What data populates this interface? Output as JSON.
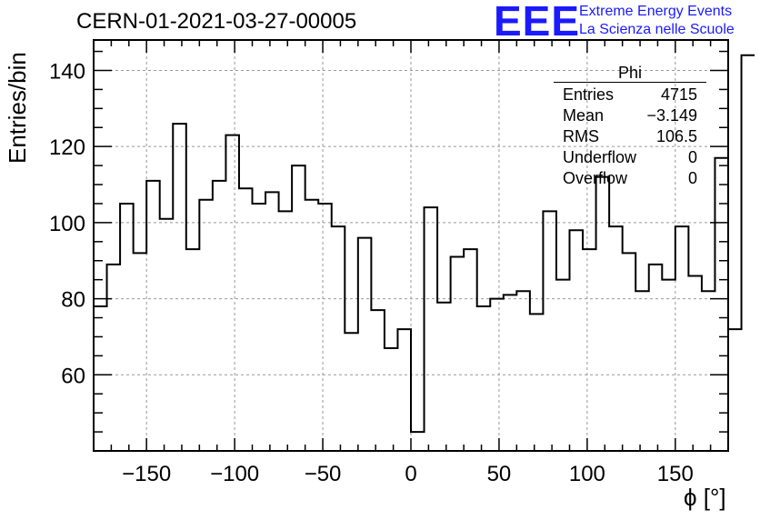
{
  "header": {
    "run_title": "CERN-01-2021-03-27-00005",
    "logo_text": "EEE",
    "logo_line1": "Extreme Energy Events",
    "logo_line2": "La Scienza nelle Scuole",
    "logo_color": "#1a1aff"
  },
  "stats_box": {
    "name": "Phi",
    "rows": [
      {
        "label": "Entries",
        "value": "4715"
      },
      {
        "label": "Mean",
        "value": "−3.149"
      },
      {
        "label": "RMS",
        "value": "106.5"
      },
      {
        "label": "Underflow",
        "value": "0"
      },
      {
        "label": "Overflow",
        "value": "0"
      }
    ]
  },
  "chart_data": {
    "type": "histogram",
    "xlabel": "ϕ [°]",
    "ylabel": "Entries/bin",
    "xlim": [
      -180,
      180
    ],
    "ylim": [
      40,
      148
    ],
    "bin_width": 7.5,
    "bin_start": -180,
    "values": [
      78,
      89,
      105,
      92,
      111,
      101,
      126,
      93,
      106,
      111,
      123,
      109,
      105,
      108,
      103,
      115,
      106,
      105,
      99,
      71,
      96,
      77,
      67,
      72,
      45,
      104,
      79,
      91,
      93,
      78,
      80,
      81,
      82,
      76,
      103,
      85,
      98,
      93,
      112,
      99,
      92,
      82,
      89,
      85,
      99,
      86,
      82,
      117,
      72,
      144
    ],
    "xticks": [
      -150,
      -100,
      -50,
      0,
      50,
      100,
      150
    ],
    "xtick_labels": [
      "−150",
      "−100",
      "−50",
      "0",
      "50",
      "100",
      "150"
    ],
    "yticks": [
      60,
      80,
      100,
      120,
      140
    ],
    "ytick_labels": [
      "60",
      "80",
      "100",
      "120",
      "140"
    ],
    "grid": true,
    "line_color": "#000000"
  }
}
